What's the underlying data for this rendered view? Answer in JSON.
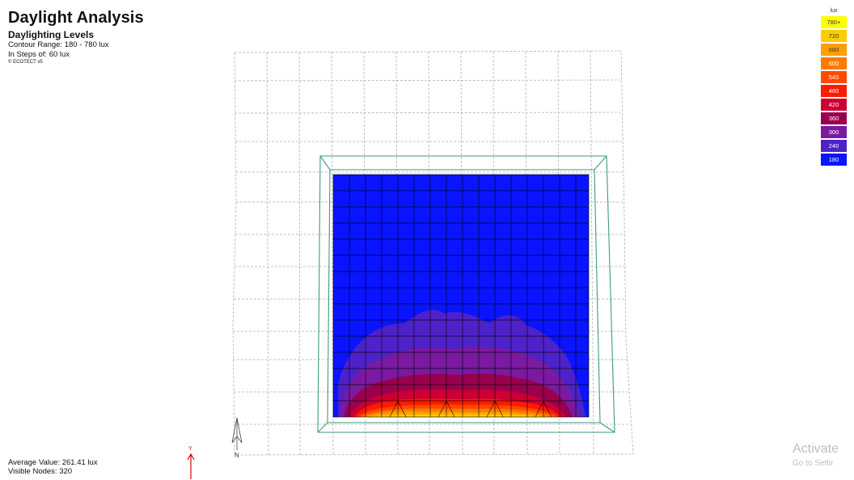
{
  "header": {
    "title": "Daylight Analysis",
    "subtitle": "Daylighting Levels",
    "contour_range": "Contour Range: 180 - 780 lux",
    "steps": "In Steps of: 60 lux",
    "copyright": "© ECOTECT v5"
  },
  "legend": {
    "unit": "lux",
    "items": [
      {
        "label": "780+",
        "color": "#ffff00"
      },
      {
        "label": "720",
        "color": "#ffcc00"
      },
      {
        "label": "660",
        "color": "#ffa000"
      },
      {
        "label": "600",
        "color": "#ff7a00"
      },
      {
        "label": "540",
        "color": "#ff4a00"
      },
      {
        "label": "480",
        "color": "#ff1a00"
      },
      {
        "label": "420",
        "color": "#cc0033"
      },
      {
        "label": "360",
        "color": "#99004d"
      },
      {
        "label": "300",
        "color": "#7a1aa0"
      },
      {
        "label": "240",
        "color": "#4d22c8"
      },
      {
        "label": "180",
        "color": "#0a14ff"
      }
    ]
  },
  "stats": {
    "average": "Average Value: 261.41 lux",
    "nodes": "Visible Nodes: 320"
  },
  "axis_marker": {
    "label": "Y"
  },
  "compass": {
    "label": "N"
  },
  "watermark": {
    "line1": "Activate",
    "line2": "Go to Settir"
  },
  "colors": {
    "frame": "#3a9a8a",
    "grid_lines": "#000000",
    "dashed_grid": "#b0b0b0",
    "axis_arrow": "#dd0000"
  }
}
